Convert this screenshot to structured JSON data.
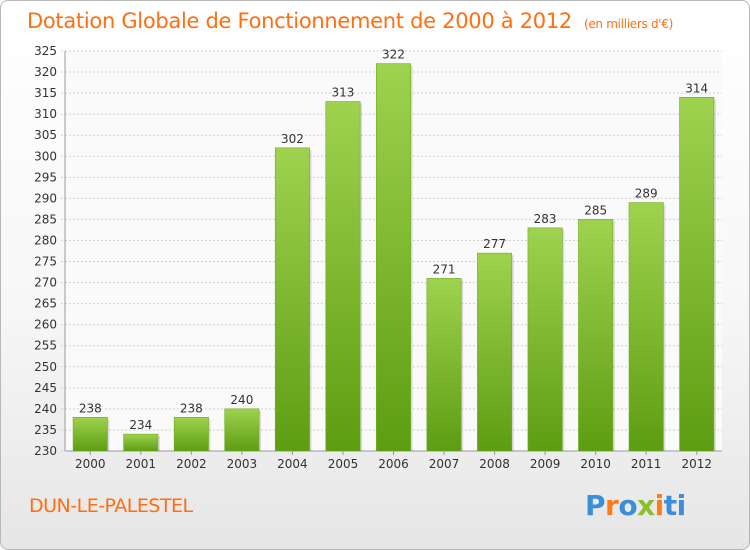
{
  "header": {
    "title": "Dotation Globale de Fonctionnement de 2000 à 2012",
    "unit_note": "(en milliers d'€)"
  },
  "footer": {
    "commune": "DUN-LE-PALESTEL",
    "logo_text": "Proxiti"
  },
  "colors": {
    "accent": "#ff6f10",
    "bar_top": "#9fd24f",
    "bar_bottom": "#5d9d12",
    "grid": "#d0d0d0",
    "text": "#333333",
    "logo_letters": [
      "#3d8ed8",
      "#ff7b14",
      "#3d8ed8",
      "#8bbf2d",
      "#ff7b14",
      "#3d8ed8",
      "#3d8ed8"
    ]
  },
  "chart_data": {
    "type": "bar",
    "categories": [
      "2000",
      "2001",
      "2002",
      "2003",
      "2004",
      "2005",
      "2006",
      "2007",
      "2008",
      "2009",
      "2010",
      "2011",
      "2012"
    ],
    "values": [
      238,
      234,
      238,
      240,
      302,
      313,
      322,
      271,
      277,
      283,
      285,
      289,
      314
    ],
    "ylim": [
      230,
      325
    ],
    "ytick_step": 5,
    "grid": true,
    "data_labels": true
  }
}
